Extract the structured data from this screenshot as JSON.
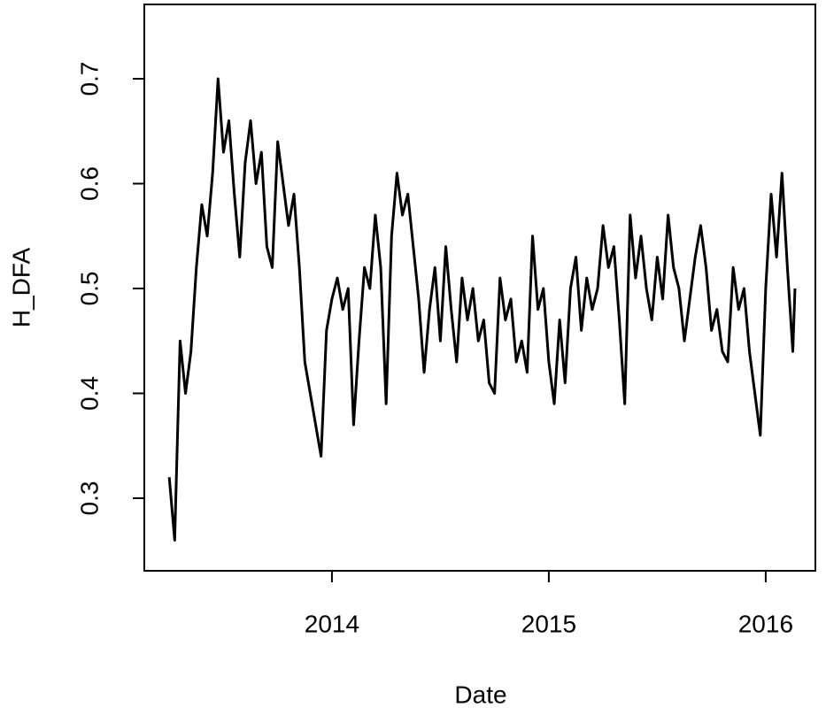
{
  "chart_data": {
    "type": "line",
    "xlabel": "Date",
    "ylabel": "H_DFA",
    "x": [
      2013.25,
      2013.275,
      2013.3,
      2013.325,
      2013.35,
      2013.375,
      2013.4,
      2013.425,
      2013.45,
      2013.475,
      2013.5,
      2013.525,
      2013.55,
      2013.575,
      2013.6,
      2013.625,
      2013.65,
      2013.675,
      2013.7,
      2013.725,
      2013.75,
      2013.775,
      2013.8,
      2013.825,
      2013.85,
      2013.875,
      2013.9,
      2013.925,
      2013.95,
      2013.975,
      2014.0,
      2014.025,
      2014.05,
      2014.075,
      2014.1,
      2014.125,
      2014.15,
      2014.175,
      2014.2,
      2014.225,
      2014.25,
      2014.275,
      2014.3,
      2014.325,
      2014.35,
      2014.375,
      2014.4,
      2014.425,
      2014.45,
      2014.475,
      2014.5,
      2014.525,
      2014.55,
      2014.575,
      2014.6,
      2014.625,
      2014.65,
      2014.675,
      2014.7,
      2014.725,
      2014.75,
      2014.775,
      2014.8,
      2014.825,
      2014.85,
      2014.875,
      2014.9,
      2014.925,
      2014.95,
      2014.975,
      2015.0,
      2015.025,
      2015.05,
      2015.075,
      2015.1,
      2015.125,
      2015.15,
      2015.175,
      2015.2,
      2015.225,
      2015.25,
      2015.275,
      2015.3,
      2015.325,
      2015.35,
      2015.375,
      2015.4,
      2015.425,
      2015.45,
      2015.475,
      2015.5,
      2015.525,
      2015.55,
      2015.575,
      2015.6,
      2015.625,
      2015.65,
      2015.675,
      2015.7,
      2015.725,
      2015.75,
      2015.775,
      2015.8,
      2015.825,
      2015.85,
      2015.875,
      2015.9,
      2015.925,
      2015.95,
      2015.975,
      2016.0,
      2016.025,
      2016.05,
      2016.075,
      2016.1,
      2016.125,
      2016.135
    ],
    "series": [
      {
        "color": "#000000",
        "values": [
          0.32,
          0.26,
          0.45,
          0.4,
          0.44,
          0.52,
          0.58,
          0.55,
          0.61,
          0.7,
          0.63,
          0.66,
          0.59,
          0.53,
          0.62,
          0.66,
          0.6,
          0.63,
          0.54,
          0.52,
          0.64,
          0.6,
          0.56,
          0.59,
          0.52,
          0.43,
          0.4,
          0.37,
          0.34,
          0.46,
          0.49,
          0.51,
          0.48,
          0.5,
          0.37,
          0.45,
          0.52,
          0.5,
          0.57,
          0.52,
          0.39,
          0.55,
          0.61,
          0.57,
          0.59,
          0.54,
          0.49,
          0.42,
          0.48,
          0.52,
          0.45,
          0.54,
          0.48,
          0.43,
          0.51,
          0.47,
          0.5,
          0.45,
          0.47,
          0.41,
          0.4,
          0.51,
          0.47,
          0.49,
          0.43,
          0.45,
          0.42,
          0.55,
          0.48,
          0.5,
          0.43,
          0.39,
          0.47,
          0.41,
          0.5,
          0.53,
          0.46,
          0.51,
          0.48,
          0.5,
          0.56,
          0.52,
          0.54,
          0.47,
          0.39,
          0.57,
          0.51,
          0.55,
          0.5,
          0.47,
          0.53,
          0.49,
          0.57,
          0.52,
          0.5,
          0.45,
          0.49,
          0.53,
          0.56,
          0.52,
          0.46,
          0.48,
          0.44,
          0.43,
          0.52,
          0.48,
          0.5,
          0.44,
          0.4,
          0.36,
          0.5,
          0.59,
          0.53,
          0.61,
          0.52,
          0.44,
          0.5
        ]
      }
    ],
    "xlim": [
      2013.135,
      2016.229
    ],
    "xticks": [
      2014,
      2015,
      2016
    ],
    "ylim": [
      0.2308,
      0.7709
    ],
    "yticks": [
      0.3,
      0.4,
      0.5,
      0.6,
      0.7
    ]
  }
}
